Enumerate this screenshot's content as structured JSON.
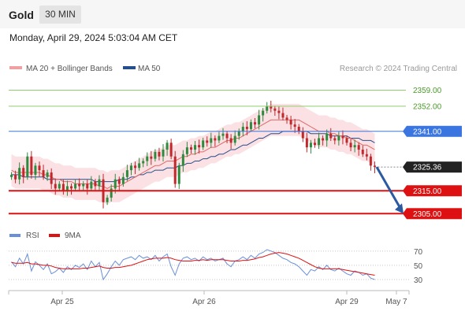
{
  "header": {
    "title": "Gold",
    "timeframe": "30 MIN"
  },
  "timestamp": "Monday, April 29, 2024 5:03:04 AM CET",
  "legend": {
    "ma": "MA 20 + Bollinger Bands",
    "ma50": "MA 50",
    "credit": "Research © 2024 Trading Central"
  },
  "osc_legend": {
    "rsi": "RSI",
    "ma": "9MA"
  },
  "colors": {
    "ma20": "#e06666",
    "ma50": "#264e8c",
    "bands": "#fadadd",
    "up": "#2e8b3e",
    "down": "#c0282c",
    "resistance": "#8fce6e",
    "pivot": "#3b76e0",
    "support": "#dd1111",
    "last": "#222222",
    "rsi": "#6a8fd8",
    "rsi_ma": "#dd1111",
    "arrow": "#2c5aa0"
  },
  "chart_data": {
    "type": "candlestick",
    "x_ticks": [
      "Apr 25",
      "Apr 26",
      "Apr 29",
      "May 7"
    ],
    "ylim": [
      2302,
      2364
    ],
    "levels": [
      {
        "label": "2359.00",
        "value": 2359.0,
        "kind": "resistance"
      },
      {
        "label": "2352.00",
        "value": 2352.0,
        "kind": "resistance"
      },
      {
        "label": "2341.00",
        "value": 2341.0,
        "kind": "pivot"
      },
      {
        "label": "2325.36",
        "value": 2325.36,
        "kind": "last"
      },
      {
        "label": "2315.00",
        "value": 2315.0,
        "kind": "support"
      },
      {
        "label": "2305.00",
        "value": 2305.0,
        "kind": "support"
      }
    ],
    "price_close": [
      2322,
      2320,
      2325,
      2321,
      2330,
      2322,
      2326,
      2324,
      2321,
      2323,
      2318,
      2316,
      2318,
      2315,
      2317,
      2316,
      2318,
      2317,
      2318,
      2316,
      2319,
      2317,
      2320,
      2310,
      2312,
      2316,
      2320,
      2318,
      2321,
      2324,
      2326,
      2325,
      2327,
      2328,
      2330,
      2329,
      2332,
      2330,
      2333,
      2336,
      2330,
      2318,
      2326,
      2331,
      2334,
      2333,
      2335,
      2334,
      2337,
      2336,
      2338,
      2337,
      2339,
      2340,
      2338,
      2336,
      2339,
      2341,
      2343,
      2342,
      2345,
      2344,
      2348,
      2350,
      2352,
      2351,
      2350,
      2349,
      2347,
      2346,
      2344,
      2343,
      2341,
      2338,
      2334,
      2336,
      2335,
      2338,
      2337,
      2340,
      2338,
      2337,
      2339,
      2338,
      2336,
      2334,
      2335,
      2333,
      2331,
      2330,
      2326,
      2325.36
    ],
    "ma20": [
      2324,
      2323,
      2323,
      2323,
      2323,
      2323,
      2323,
      2323,
      2322,
      2322,
      2321,
      2320,
      2320,
      2319,
      2319,
      2319,
      2318,
      2318,
      2318,
      2318,
      2318,
      2318,
      2317,
      2317,
      2316,
      2317,
      2317,
      2317,
      2318,
      2319,
      2320,
      2321,
      2322,
      2323,
      2324,
      2325,
      2326,
      2326,
      2327,
      2328,
      2328,
      2328,
      2329,
      2330,
      2330,
      2331,
      2331,
      2332,
      2332,
      2333,
      2334,
      2334,
      2335,
      2336,
      2337,
      2337,
      2338,
      2338,
      2339,
      2340,
      2341,
      2342,
      2343,
      2344,
      2345,
      2346,
      2346,
      2346,
      2346,
      2346,
      2346,
      2346,
      2346,
      2345,
      2344,
      2343,
      2342,
      2341,
      2341,
      2341,
      2340,
      2340,
      2339,
      2339,
      2338,
      2338,
      2337,
      2336,
      2335,
      2335,
      2334,
      2333
    ],
    "ma50": [
      2322,
      2322,
      2322,
      2321,
      2321,
      2321,
      2321,
      2321,
      2321,
      2320,
      2320,
      2320,
      2320,
      2320,
      2320,
      2320,
      2320,
      2320,
      2320,
      2320,
      2320,
      2319,
      2319,
      2319,
      2319,
      2319,
      2319,
      2320,
      2320,
      2320,
      2321,
      2321,
      2322,
      2322,
      2323,
      2323,
      2324,
      2324,
      2324,
      2325,
      2325,
      2325,
      2326,
      2326,
      2327,
      2327,
      2328,
      2328,
      2329,
      2329,
      2330,
      2330,
      2331,
      2331,
      2332,
      2333,
      2333,
      2334,
      2335,
      2335,
      2336,
      2337,
      2338,
      2338,
      2339,
      2340,
      2340,
      2340,
      2341,
      2341,
      2341,
      2341,
      2341,
      2341,
      2341,
      2340,
      2340,
      2340,
      2340,
      2340,
      2339,
      2339,
      2339,
      2339,
      2339,
      2338,
      2338,
      2338,
      2337,
      2337,
      2337,
      2336
    ],
    "band_half": 7,
    "rsi": {
      "levels": [
        70,
        50,
        30
      ],
      "ylim": [
        20,
        82
      ],
      "rsi": [
        55,
        48,
        60,
        52,
        66,
        42,
        55,
        50,
        44,
        52,
        38,
        41,
        46,
        40,
        48,
        44,
        50,
        47,
        52,
        44,
        56,
        48,
        54,
        30,
        38,
        48,
        56,
        50,
        58,
        60,
        62,
        58,
        64,
        60,
        62,
        58,
        64,
        56,
        62,
        66,
        48,
        36,
        52,
        60,
        62,
        58,
        60,
        56,
        62,
        58,
        60,
        56,
        58,
        60,
        52,
        48,
        56,
        58,
        62,
        58,
        64,
        60,
        66,
        68,
        72,
        70,
        68,
        64,
        60,
        58,
        54,
        52,
        48,
        42,
        36,
        44,
        42,
        48,
        44,
        50,
        44,
        42,
        46,
        42,
        38,
        36,
        42,
        40,
        36,
        38,
        32,
        30
      ],
      "ma": [
        54,
        53,
        53,
        53,
        54,
        52,
        52,
        51,
        50,
        50,
        49,
        47,
        46,
        45,
        45,
        45,
        45,
        45,
        46,
        46,
        47,
        48,
        49,
        47,
        46,
        46,
        47,
        47,
        48,
        49,
        50,
        52,
        54,
        56,
        58,
        59,
        60,
        60,
        60,
        61,
        60,
        58,
        57,
        56,
        56,
        56,
        57,
        57,
        58,
        57,
        58,
        58,
        58,
        58,
        57,
        56,
        56,
        56,
        57,
        57,
        58,
        59,
        61,
        62,
        64,
        66,
        67,
        68,
        67,
        66,
        64,
        62,
        60,
        57,
        54,
        51,
        48,
        46,
        45,
        45,
        45,
        45,
        45,
        44,
        43,
        42,
        41,
        40,
        39,
        38,
        37,
        36
      ]
    }
  }
}
